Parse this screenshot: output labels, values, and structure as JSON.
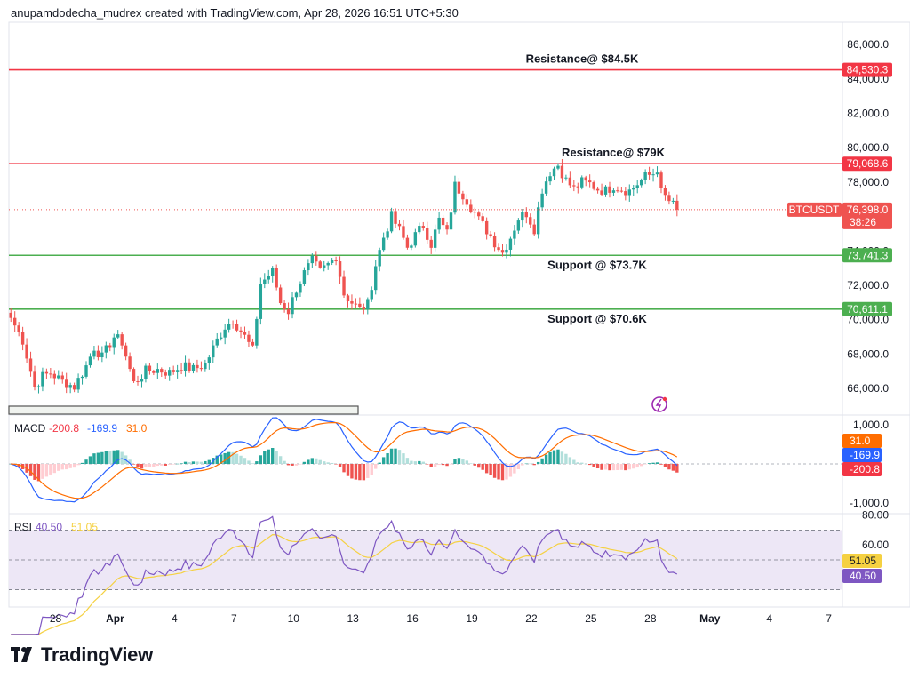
{
  "header": {
    "attribution": "anupamdodecha_mudrex created with TradingView.com, Apr 28, 2026 16:51 UTC+5:30"
  },
  "brand": {
    "name": "TradingView"
  },
  "colors": {
    "up": "#26a69a",
    "down": "#ef5350",
    "resistance": "#f23645",
    "support": "#4caf50",
    "macd_line": "#2962ff",
    "signal_line": "#ff6d00",
    "rsi_line": "#7e57c2",
    "rsi_ma": "#f5d142",
    "rsi_band": "#ede7f6"
  },
  "chart_data": {
    "type": "candlestick",
    "symbol": "BTCUSDT",
    "price_axis": {
      "ylim": [
        64500,
        87300
      ],
      "ticks": [
        "86,000.0",
        "84,000.0",
        "82,000.0",
        "80,000.0",
        "78,000.0",
        "76,000.0",
        "74,000.0",
        "72,000.0",
        "70,000.0",
        "68,000.0",
        "66,000.0"
      ]
    },
    "x_axis": {
      "ticks": [
        {
          "label": "28",
          "i": 5
        },
        {
          "label": "Apr",
          "i": 20
        },
        {
          "label": "4",
          "i": 35
        },
        {
          "label": "7",
          "i": 50
        },
        {
          "label": "10",
          "i": 65
        },
        {
          "label": "13",
          "i": 80
        },
        {
          "label": "16",
          "i": 95
        },
        {
          "label": "19",
          "i": 110
        },
        {
          "label": "22",
          "i": 125
        },
        {
          "label": "25",
          "i": 140
        },
        {
          "label": "28",
          "i": 155
        },
        {
          "label": "May",
          "i": 170
        },
        {
          "label": "4",
          "i": 185
        },
        {
          "label": "7",
          "i": 200
        }
      ]
    },
    "levels": [
      {
        "label": "Resistance@ $84.5K",
        "value": 84530.3,
        "tag": "84,530.3",
        "kind": "resistance"
      },
      {
        "label": "Resistance@ $79K",
        "value": 79068.6,
        "tag": "79,068.6",
        "kind": "resistance"
      },
      {
        "label": "Support @ $73.7K",
        "value": 73741.3,
        "tag": "73,741.3",
        "kind": "support"
      },
      {
        "label": "Support @ $70.6K",
        "value": 70611.1,
        "tag": "70,611.1",
        "kind": "support"
      }
    ],
    "last_price": {
      "value": 76398.0,
      "label": "76,398.0",
      "countdown": "38:26",
      "symbol_tag": "BTCUSDT"
    },
    "anchors": [
      [
        0,
        70100
      ],
      [
        3,
        68800
      ],
      [
        6,
        66100
      ],
      [
        8,
        66700
      ],
      [
        10,
        66900
      ],
      [
        13,
        66400
      ],
      [
        16,
        66100
      ],
      [
        19,
        67300
      ],
      [
        21,
        68400
      ],
      [
        23,
        67800
      ],
      [
        26,
        69000
      ],
      [
        28,
        68700
      ],
      [
        31,
        66300
      ],
      [
        34,
        67000
      ],
      [
        37,
        67100
      ],
      [
        40,
        66900
      ],
      [
        43,
        67300
      ],
      [
        46,
        67100
      ],
      [
        49,
        67400
      ],
      [
        52,
        68800
      ],
      [
        54,
        69600
      ],
      [
        56,
        70000
      ],
      [
        59,
        69000
      ],
      [
        61,
        68200
      ],
      [
        63,
        72100
      ],
      [
        66,
        72800
      ],
      [
        68,
        71000
      ],
      [
        70,
        70500
      ],
      [
        72,
        71800
      ],
      [
        74,
        72700
      ],
      [
        76,
        73400
      ],
      [
        78,
        72800
      ],
      [
        80,
        73200
      ],
      [
        82,
        73700
      ],
      [
        84,
        71500
      ],
      [
        86,
        71000
      ],
      [
        88,
        70600
      ],
      [
        90,
        70900
      ],
      [
        92,
        73200
      ],
      [
        94,
        74800
      ],
      [
        96,
        76000
      ],
      [
        98,
        75200
      ],
      [
        100,
        74200
      ],
      [
        102,
        74900
      ],
      [
        104,
        75500
      ],
      [
        106,
        74400
      ],
      [
        108,
        75800
      ],
      [
        110,
        75000
      ],
      [
        112,
        77800
      ],
      [
        114,
        77300
      ],
      [
        116,
        76600
      ],
      [
        118,
        75800
      ],
      [
        120,
        75200
      ],
      [
        122,
        74500
      ],
      [
        124,
        73900
      ],
      [
        126,
        74800
      ],
      [
        128,
        75900
      ],
      [
        130,
        76200
      ],
      [
        132,
        75300
      ],
      [
        134,
        77600
      ],
      [
        136,
        78600
      ],
      [
        138,
        79000
      ],
      [
        140,
        78100
      ],
      [
        142,
        77600
      ],
      [
        144,
        78000
      ],
      [
        146,
        77900
      ],
      [
        148,
        77600
      ],
      [
        150,
        77500
      ],
      [
        152,
        77800
      ],
      [
        154,
        77600
      ],
      [
        156,
        77500
      ],
      [
        158,
        77900
      ],
      [
        160,
        78300
      ],
      [
        162,
        78500
      ],
      [
        163,
        78800
      ],
      [
        164,
        77400
      ],
      [
        166,
        76900
      ],
      [
        168,
        76398
      ]
    ],
    "macd": {
      "label": "MACD",
      "values": [
        "-200.8",
        "-169.9",
        "31.0"
      ],
      "ylim": [
        -1250,
        1250
      ],
      "ticks": [
        "1,000.0",
        "-1,000.0"
      ],
      "tags": [
        {
          "text": "31.0",
          "value": 31.0,
          "color": "#ff6d00"
        },
        {
          "text": "-169.9",
          "value": -169.9,
          "color": "#2962ff"
        },
        {
          "text": "-200.8",
          "value": -200.8,
          "color": "#f23645"
        }
      ]
    },
    "rsi": {
      "label": "RSI",
      "values": [
        "40.50",
        "51.05"
      ],
      "ylim": [
        19,
        81
      ],
      "band": [
        30,
        70
      ],
      "ticks": [
        "80.00",
        "60.00"
      ],
      "tags": [
        {
          "text": "51.05",
          "value": 51.05,
          "color": "#f5d142",
          "dark": true
        },
        {
          "text": "40.50",
          "value": 40.5,
          "color": "#7e57c2"
        }
      ]
    }
  }
}
